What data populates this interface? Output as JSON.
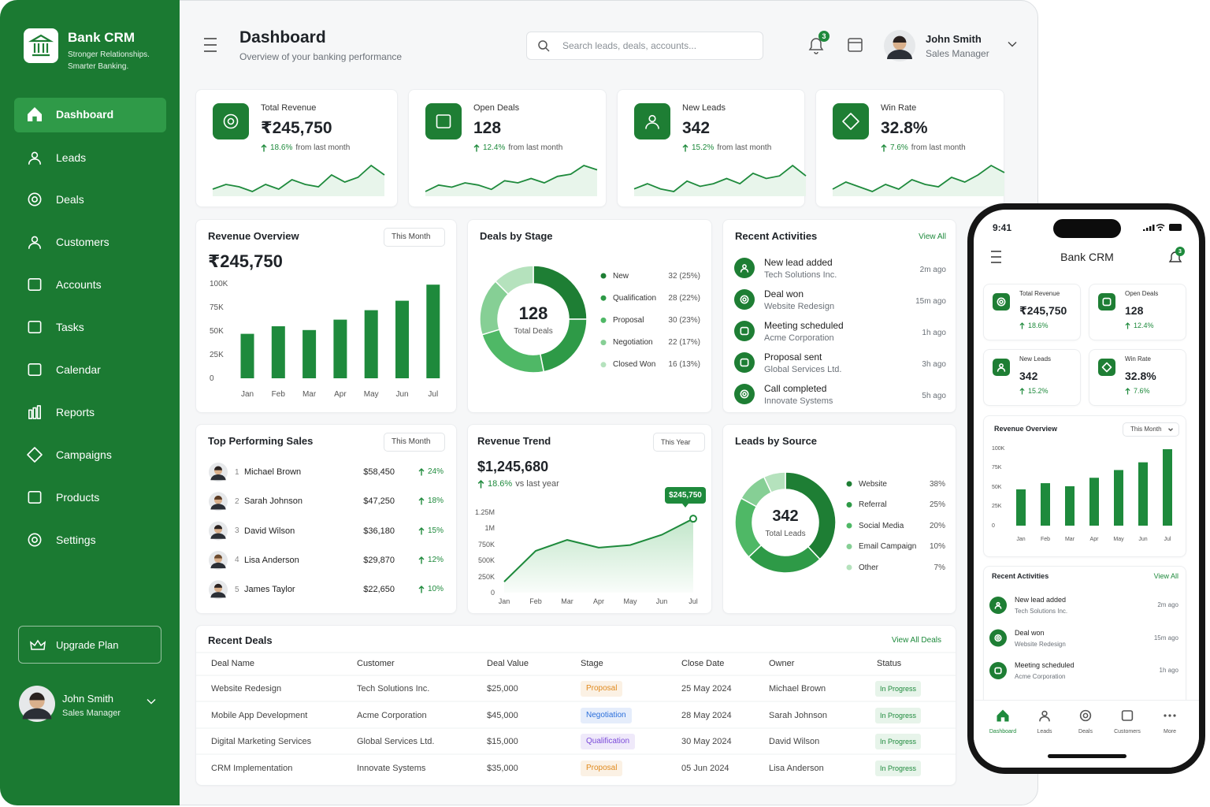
{
  "brand": {
    "name": "Bank CRM",
    "tagline": [
      "Stronger Relationships.",
      "Smarter Banking."
    ]
  },
  "nav": {
    "items": [
      "Dashboard",
      "Leads",
      "Deals",
      "Customers",
      "Accounts",
      "Tasks",
      "Calendar",
      "Reports",
      "Campaigns",
      "Products",
      "Settings"
    ],
    "active": 0
  },
  "upgrade": "Upgrade Plan",
  "user": {
    "name": "John Smith",
    "role": "Sales Manager"
  },
  "header": {
    "title": "Dashboard",
    "subtitle": "Overview of your banking performance",
    "search_placeholder": "Search leads, deals, accounts...",
    "notifications": "3"
  },
  "kpis": [
    {
      "label": "Total Revenue",
      "value": "₹245,750",
      "change": "18.6%",
      "change_note": "from last month",
      "spark": [
        4,
        5,
        4.5,
        3.5,
        5,
        4,
        6,
        5,
        4.5,
        7,
        5.5,
        6.5,
        9,
        7
      ]
    },
    {
      "label": "Open Deals",
      "value": "128",
      "change": "12.4%",
      "change_note": "from last month",
      "spark": [
        3,
        4.5,
        4,
        5,
        4.5,
        3.5,
        5.5,
        5,
        6,
        5,
        6.5,
        7,
        9,
        8
      ]
    },
    {
      "label": "New Leads",
      "value": "342",
      "change": "15.2%",
      "change_note": "from last month",
      "spark": [
        4,
        5,
        4,
        3.5,
        5.5,
        4.5,
        5,
        6,
        5,
        7,
        6,
        6.5,
        8.5,
        6.5
      ]
    },
    {
      "label": "Win Rate",
      "value": "32.8%",
      "change": "7.6%",
      "change_note": "from last month",
      "spark": [
        4,
        5.5,
        4.5,
        3.5,
        5,
        4,
        6,
        5,
        4.5,
        6.5,
        5.5,
        7,
        9,
        7.5
      ]
    }
  ],
  "revenue_overview": {
    "title": "Revenue Overview",
    "filter": "This Month",
    "total": "₹245,750",
    "chart_data": {
      "type": "bar",
      "categories": [
        "Jan",
        "Feb",
        "Mar",
        "Apr",
        "May",
        "Jun",
        "Jul"
      ],
      "values": [
        47000,
        55000,
        51000,
        62000,
        72000,
        82000,
        99000
      ],
      "color": "#1e8a3c",
      "ylim": [
        0,
        100000
      ],
      "yticks": [
        0,
        {
          "value": 25000,
          "label": "25K"
        },
        {
          "value": 50000,
          "label": "50K"
        },
        {
          "value": 75000,
          "label": "75K"
        },
        {
          "value": 100000,
          "label": "100K"
        }
      ]
    }
  },
  "deals_by_stage": {
    "title": "Deals by Stage",
    "center_value": "128",
    "center_label": "Total Deals",
    "chart_data": {
      "type": "donut",
      "categories": [
        "New",
        "Qualification",
        "Proposal",
        "Negotiation",
        "Closed Won"
      ],
      "values": [
        32,
        28,
        30,
        22,
        16
      ],
      "value_labels": [
        "32 (25%)",
        "28 (22%)",
        "30 (23%)",
        "22 (17%)",
        "16 (13%)"
      ],
      "colors": [
        "#1e7e34",
        "#2e9a47",
        "#4fb866",
        "#86cf95",
        "#b5e2bd"
      ]
    }
  },
  "recent_activities": {
    "title": "Recent Activities",
    "view_all": "View All",
    "items": [
      {
        "title": "New lead added",
        "subtitle": "Tech Solutions Inc.",
        "time": "2m ago"
      },
      {
        "title": "Deal won",
        "subtitle": "Website Redesign",
        "time": "15m ago"
      },
      {
        "title": "Meeting scheduled",
        "subtitle": "Acme Corporation",
        "time": "1h ago"
      },
      {
        "title": "Proposal sent",
        "subtitle": "Global Services Ltd.",
        "time": "3h ago"
      },
      {
        "title": "Call completed",
        "subtitle": "Innovate Systems",
        "time": "5h ago"
      }
    ]
  },
  "top_sales": {
    "title": "Top Performing Sales",
    "filter": "This Month",
    "rows": [
      {
        "rank": 1,
        "name": "Michael Brown",
        "amount": "$58,450",
        "change": "24%"
      },
      {
        "rank": 2,
        "name": "Sarah Johnson",
        "amount": "$47,250",
        "change": "18%"
      },
      {
        "rank": 3,
        "name": "David Wilson",
        "amount": "$36,180",
        "change": "15%"
      },
      {
        "rank": 4,
        "name": "Lisa Anderson",
        "amount": "$29,870",
        "change": "12%"
      },
      {
        "rank": 5,
        "name": "James Taylor",
        "amount": "$22,650",
        "change": "10%"
      }
    ]
  },
  "revenue_trend": {
    "title": "Revenue Trend",
    "filter": "This Year",
    "total": "$1,245,680",
    "change": "18.6%",
    "change_note": "vs last year",
    "chart_data": {
      "type": "line",
      "categories": [
        "Jan",
        "Feb",
        "Mar",
        "Apr",
        "May",
        "Jun",
        "Jul"
      ],
      "values": [
        170000,
        650000,
        820000,
        700000,
        740000,
        900000,
        1150000
      ],
      "color": "#1e8a3c",
      "ylim": [
        0,
        1250000
      ],
      "yticks": [
        0,
        {
          "value": 250000,
          "label": "250K"
        },
        {
          "value": 500000,
          "label": "500K"
        },
        {
          "value": 750000,
          "label": "750K"
        },
        {
          "value": 1000000,
          "label": "1M"
        },
        {
          "value": 1250000,
          "label": "1.25M"
        }
      ],
      "annotation": "$245,750"
    }
  },
  "leads_by_source": {
    "title": "Leads by Source",
    "center_value": "342",
    "center_label": "Total Leads",
    "chart_data": {
      "type": "donut",
      "categories": [
        "Website",
        "Referral",
        "Social Media",
        "Email Campaign",
        "Other"
      ],
      "values": [
        38,
        25,
        20,
        10,
        7
      ],
      "value_labels": [
        "38%",
        "25%",
        "20%",
        "10%",
        "7%"
      ],
      "colors": [
        "#1e7e34",
        "#2e9a47",
        "#4fb866",
        "#86cf95",
        "#b5e2bd"
      ]
    }
  },
  "recent_deals": {
    "title": "Recent Deals",
    "view_all": "View All Deals",
    "columns": [
      "Deal Name",
      "Customer",
      "Deal Value",
      "Stage",
      "Close Date",
      "Owner",
      "Status"
    ],
    "rows": [
      [
        "Website Redesign",
        "Tech Solutions Inc.",
        "$25,000",
        "Proposal",
        "25 May 2024",
        "Michael Brown",
        "In Progress"
      ],
      [
        "Mobile App Development",
        "Acme Corporation",
        "$45,000",
        "Negotiation",
        "28 May 2024",
        "Sarah Johnson",
        "In Progress"
      ],
      [
        "Digital Marketing Services",
        "Global Services Ltd.",
        "$15,000",
        "Qualification",
        "30 May 2024",
        "David Wilson",
        "In Progress"
      ],
      [
        "CRM Implementation",
        "Innovate Systems",
        "$35,000",
        "Proposal",
        "05 Jun 2024",
        "Lisa Anderson",
        "In Progress"
      ]
    ],
    "stage_colors": [
      "#e08a1e",
      "#2a6fdb",
      "#7a4ad9",
      "#e08a1e"
    ]
  },
  "phone": {
    "time": "9:41",
    "title": "Bank CRM",
    "notifications": "3",
    "tabs": [
      "Dashboard",
      "Leads",
      "Deals",
      "Customers",
      "More"
    ],
    "active_tab": 0
  }
}
